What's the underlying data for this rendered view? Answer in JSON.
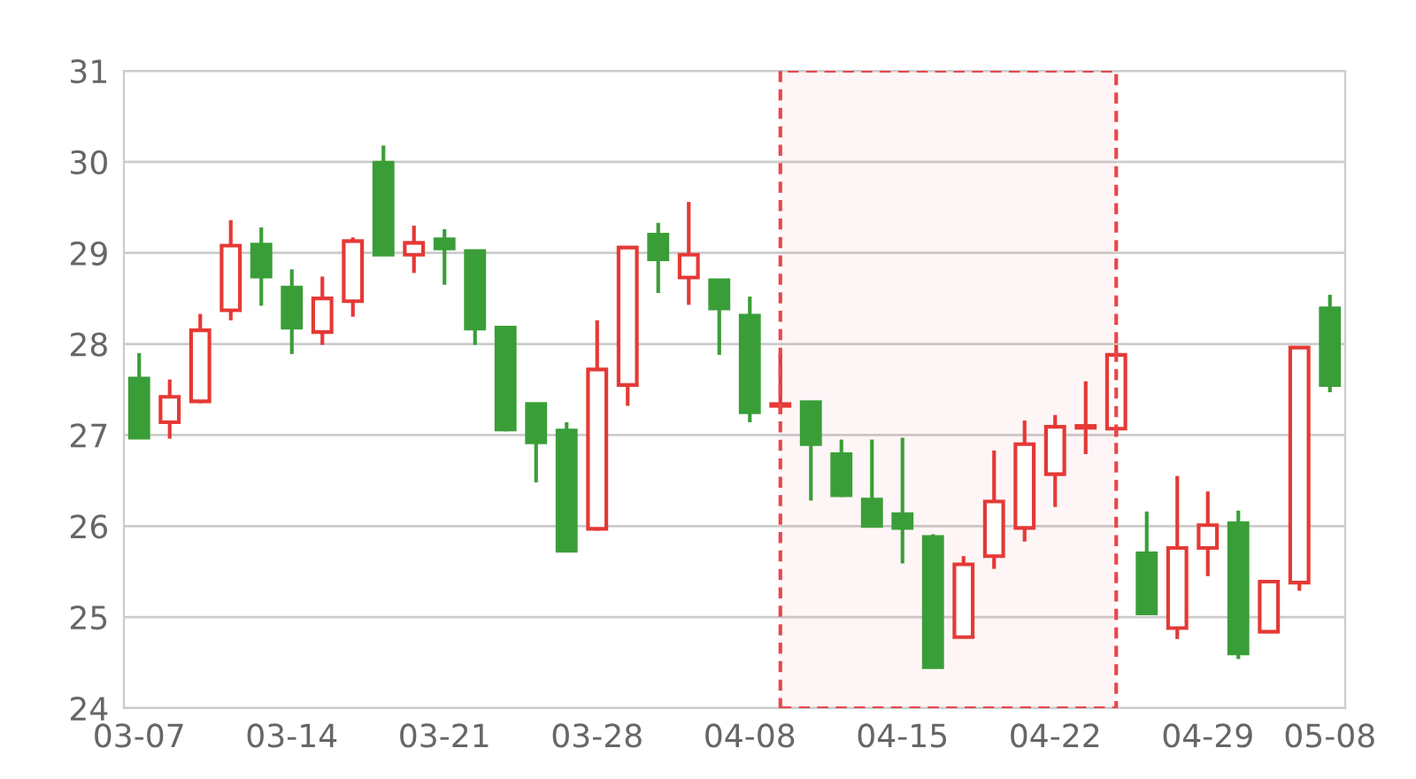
{
  "chart_data": {
    "type": "candlestick",
    "categories": [
      "03-07",
      null,
      null,
      null,
      null,
      "03-14",
      null,
      null,
      null,
      null,
      "03-21",
      null,
      null,
      null,
      null,
      "03-28",
      null,
      null,
      null,
      null,
      "04-08",
      null,
      null,
      null,
      null,
      "04-15",
      null,
      null,
      null,
      null,
      "04-22",
      null,
      null,
      null,
      null,
      "04-29",
      null,
      null,
      null,
      "05-08"
    ],
    "ohlc": [
      [
        27.62,
        27.9,
        26.97,
        26.97
      ],
      [
        27.14,
        27.61,
        26.96,
        27.42
      ],
      [
        27.37,
        28.33,
        27.35,
        28.15
      ],
      [
        28.37,
        29.36,
        28.26,
        29.08
      ],
      [
        29.09,
        29.28,
        28.42,
        28.74
      ],
      [
        28.62,
        28.82,
        27.89,
        28.18
      ],
      [
        28.13,
        28.74,
        27.99,
        28.5
      ],
      [
        28.47,
        29.17,
        28.3,
        29.13
      ],
      [
        29.99,
        30.18,
        28.98,
        28.98
      ],
      [
        28.98,
        29.3,
        28.78,
        29.11
      ],
      [
        29.15,
        29.26,
        28.65,
        29.05
      ],
      [
        29.02,
        29.02,
        27.99,
        28.17
      ],
      [
        28.18,
        28.18,
        27.04,
        27.06
      ],
      [
        27.34,
        27.34,
        26.48,
        26.92
      ],
      [
        27.05,
        27.14,
        25.73,
        25.73
      ],
      [
        25.97,
        28.26,
        25.95,
        27.72
      ],
      [
        27.55,
        29.06,
        27.32,
        29.06
      ],
      [
        29.2,
        29.33,
        28.56,
        28.93
      ],
      [
        28.73,
        29.56,
        28.43,
        28.98
      ],
      [
        28.7,
        28.7,
        27.88,
        28.39
      ],
      [
        28.31,
        28.52,
        27.14,
        27.25
      ],
      [
        27.32,
        27.89,
        27.23,
        27.34
      ],
      [
        27.36,
        27.36,
        26.28,
        26.9
      ],
      [
        26.79,
        26.95,
        26.32,
        26.34
      ],
      [
        26.29,
        26.95,
        25.99,
        26.0
      ],
      [
        26.13,
        26.97,
        25.59,
        25.98
      ],
      [
        25.88,
        25.91,
        24.44,
        24.45
      ],
      [
        24.78,
        25.67,
        24.78,
        25.58
      ],
      [
        25.67,
        26.83,
        25.53,
        26.27
      ],
      [
        25.98,
        27.16,
        25.83,
        26.9
      ],
      [
        26.57,
        27.22,
        26.21,
        27.09
      ],
      [
        27.08,
        27.59,
        26.79,
        27.1
      ],
      [
        27.07,
        27.99,
        26.98,
        27.88
      ],
      [
        25.7,
        26.16,
        25.04,
        25.04
      ],
      [
        24.88,
        26.55,
        24.76,
        25.76
      ],
      [
        25.76,
        26.38,
        25.45,
        26.01
      ],
      [
        26.03,
        26.17,
        24.54,
        24.6
      ],
      [
        24.84,
        25.39,
        24.84,
        25.39
      ],
      [
        25.38,
        27.96,
        25.29,
        27.96
      ],
      [
        28.39,
        28.54,
        27.47,
        27.55
      ]
    ],
    "colors": [
      "#3a9e38",
      "#e53935",
      "#e53935",
      "#e53935",
      "#3a9e38",
      "#3a9e38",
      "#e53935",
      "#e53935",
      "#3a9e38",
      "#e53935",
      "#3a9e38",
      "#3a9e38",
      "#3a9e38",
      "#3a9e38",
      "#3a9e38",
      "#e53935",
      "#e53935",
      "#3a9e38",
      "#e53935",
      "#3a9e38",
      "#3a9e38",
      "#e53935",
      "#3a9e38",
      "#3a9e38",
      "#3a9e38",
      "#3a9e38",
      "#3a9e38",
      "#e53935",
      "#e53935",
      "#e53935",
      "#e53935",
      "#e53935",
      "#e53935",
      "#3a9e38",
      "#e53935",
      "#e53935",
      "#3a9e38",
      "#e53935",
      "#e53935",
      "#3a9e38"
    ],
    "ylim": [
      24,
      31
    ],
    "yticks": [
      24,
      25,
      26,
      27,
      28,
      29,
      30,
      31
    ],
    "grid": "y"
  }
}
